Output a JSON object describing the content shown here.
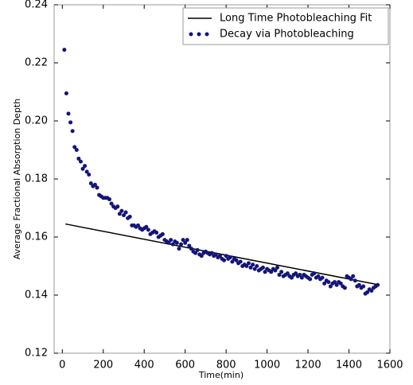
{
  "chart_data": {
    "type": "scatter",
    "xlabel": "Time(min)",
    "ylabel": "Average Fractional Absorption Depth",
    "xlim": [
      -40,
      1600
    ],
    "xticks": [
      0,
      200,
      400,
      600,
      800,
      1000,
      1200,
      1400,
      1600
    ],
    "ylim": [
      0.12,
      0.24
    ],
    "yticks": [
      {
        "value": 0.12,
        "label": "0.12"
      },
      {
        "value": 0.14,
        "label": "0.14"
      },
      {
        "value": 0.16,
        "label": "0.16"
      },
      {
        "value": 0.18,
        "label": "0.18"
      },
      {
        "value": 0.2,
        "label": "0.20"
      },
      {
        "value": 0.22,
        "label": "0.22"
      },
      {
        "value": 0.24,
        "label": "0.24"
      }
    ],
    "legend": "upper right",
    "series": [
      {
        "name": "Long Time Photobleaching Fit",
        "type": "line",
        "color": "#000000",
        "x": [
          15,
          1550
        ],
        "values": [
          0.1645,
          0.1435
        ]
      },
      {
        "name": "Decay via Photobleaching",
        "type": "scatter",
        "color": "#14147a",
        "x": [
          10,
          20,
          30,
          40,
          50,
          60,
          70,
          80,
          90,
          100,
          110,
          120,
          130,
          140,
          150,
          160,
          170,
          180,
          190,
          200,
          210,
          220,
          230,
          240,
          250,
          260,
          270,
          280,
          290,
          300,
          310,
          320,
          330,
          340,
          350,
          360,
          370,
          380,
          390,
          400,
          410,
          420,
          430,
          440,
          450,
          460,
          470,
          480,
          490,
          500,
          510,
          520,
          530,
          540,
          550,
          560,
          570,
          580,
          590,
          600,
          610,
          620,
          630,
          640,
          650,
          660,
          670,
          680,
          690,
          700,
          710,
          720,
          730,
          740,
          750,
          760,
          770,
          780,
          790,
          800,
          810,
          820,
          830,
          840,
          850,
          860,
          870,
          880,
          890,
          900,
          910,
          920,
          930,
          940,
          950,
          960,
          970,
          980,
          990,
          1000,
          1010,
          1020,
          1030,
          1040,
          1050,
          1060,
          1070,
          1080,
          1090,
          1100,
          1110,
          1120,
          1130,
          1140,
          1150,
          1160,
          1170,
          1180,
          1190,
          1200,
          1210,
          1220,
          1230,
          1240,
          1250,
          1260,
          1270,
          1280,
          1290,
          1300,
          1310,
          1320,
          1330,
          1340,
          1350,
          1360,
          1370,
          1380,
          1390,
          1400,
          1410,
          1420,
          1430,
          1440,
          1450,
          1460,
          1470,
          1480,
          1490,
          1500,
          1510,
          1520,
          1530,
          1540
        ],
        "values": [
          0.2245,
          0.2095,
          0.2025,
          0.1995,
          0.1965,
          0.191,
          0.19,
          0.187,
          0.186,
          0.1835,
          0.1845,
          0.1825,
          0.1815,
          0.1785,
          0.1775,
          0.178,
          0.177,
          0.1745,
          0.174,
          0.1735,
          0.1735,
          0.1735,
          0.173,
          0.1715,
          0.1705,
          0.17,
          0.1705,
          0.168,
          0.169,
          0.1675,
          0.1685,
          0.1665,
          0.167,
          0.164,
          0.164,
          0.1635,
          0.164,
          0.163,
          0.1625,
          0.163,
          0.1635,
          0.1625,
          0.161,
          0.1615,
          0.162,
          0.1615,
          0.16,
          0.1605,
          0.161,
          0.159,
          0.1585,
          0.158,
          0.159,
          0.1575,
          0.1585,
          0.158,
          0.156,
          0.1575,
          0.159,
          0.158,
          0.159,
          0.157,
          0.156,
          0.155,
          0.1545,
          0.1555,
          0.154,
          0.1535,
          0.1545,
          0.155,
          0.1545,
          0.154,
          0.1545,
          0.1535,
          0.154,
          0.153,
          0.1535,
          0.1525,
          0.152,
          0.1535,
          0.1525,
          0.153,
          0.1515,
          0.1525,
          0.152,
          0.151,
          0.1515,
          0.15,
          0.1505,
          0.15,
          0.151,
          0.1495,
          0.1505,
          0.149,
          0.15,
          0.1485,
          0.149,
          0.1495,
          0.148,
          0.149,
          0.1485,
          0.148,
          0.149,
          0.1485,
          0.1495,
          0.147,
          0.148,
          0.1465,
          0.147,
          0.1475,
          0.1465,
          0.146,
          0.147,
          0.1475,
          0.1465,
          0.147,
          0.146,
          0.147,
          0.1465,
          0.146,
          0.1455,
          0.147,
          0.1475,
          0.146,
          0.1465,
          0.1455,
          0.146,
          0.144,
          0.145,
          0.1445,
          0.143,
          0.144,
          0.1445,
          0.1435,
          0.1445,
          0.144,
          0.143,
          0.1425,
          0.1465,
          0.146,
          0.1455,
          0.1465,
          0.145,
          0.143,
          0.1435,
          0.1425,
          0.143,
          0.1405,
          0.141,
          0.142,
          0.1415,
          0.1425,
          0.143,
          0.1435
        ]
      }
    ]
  }
}
